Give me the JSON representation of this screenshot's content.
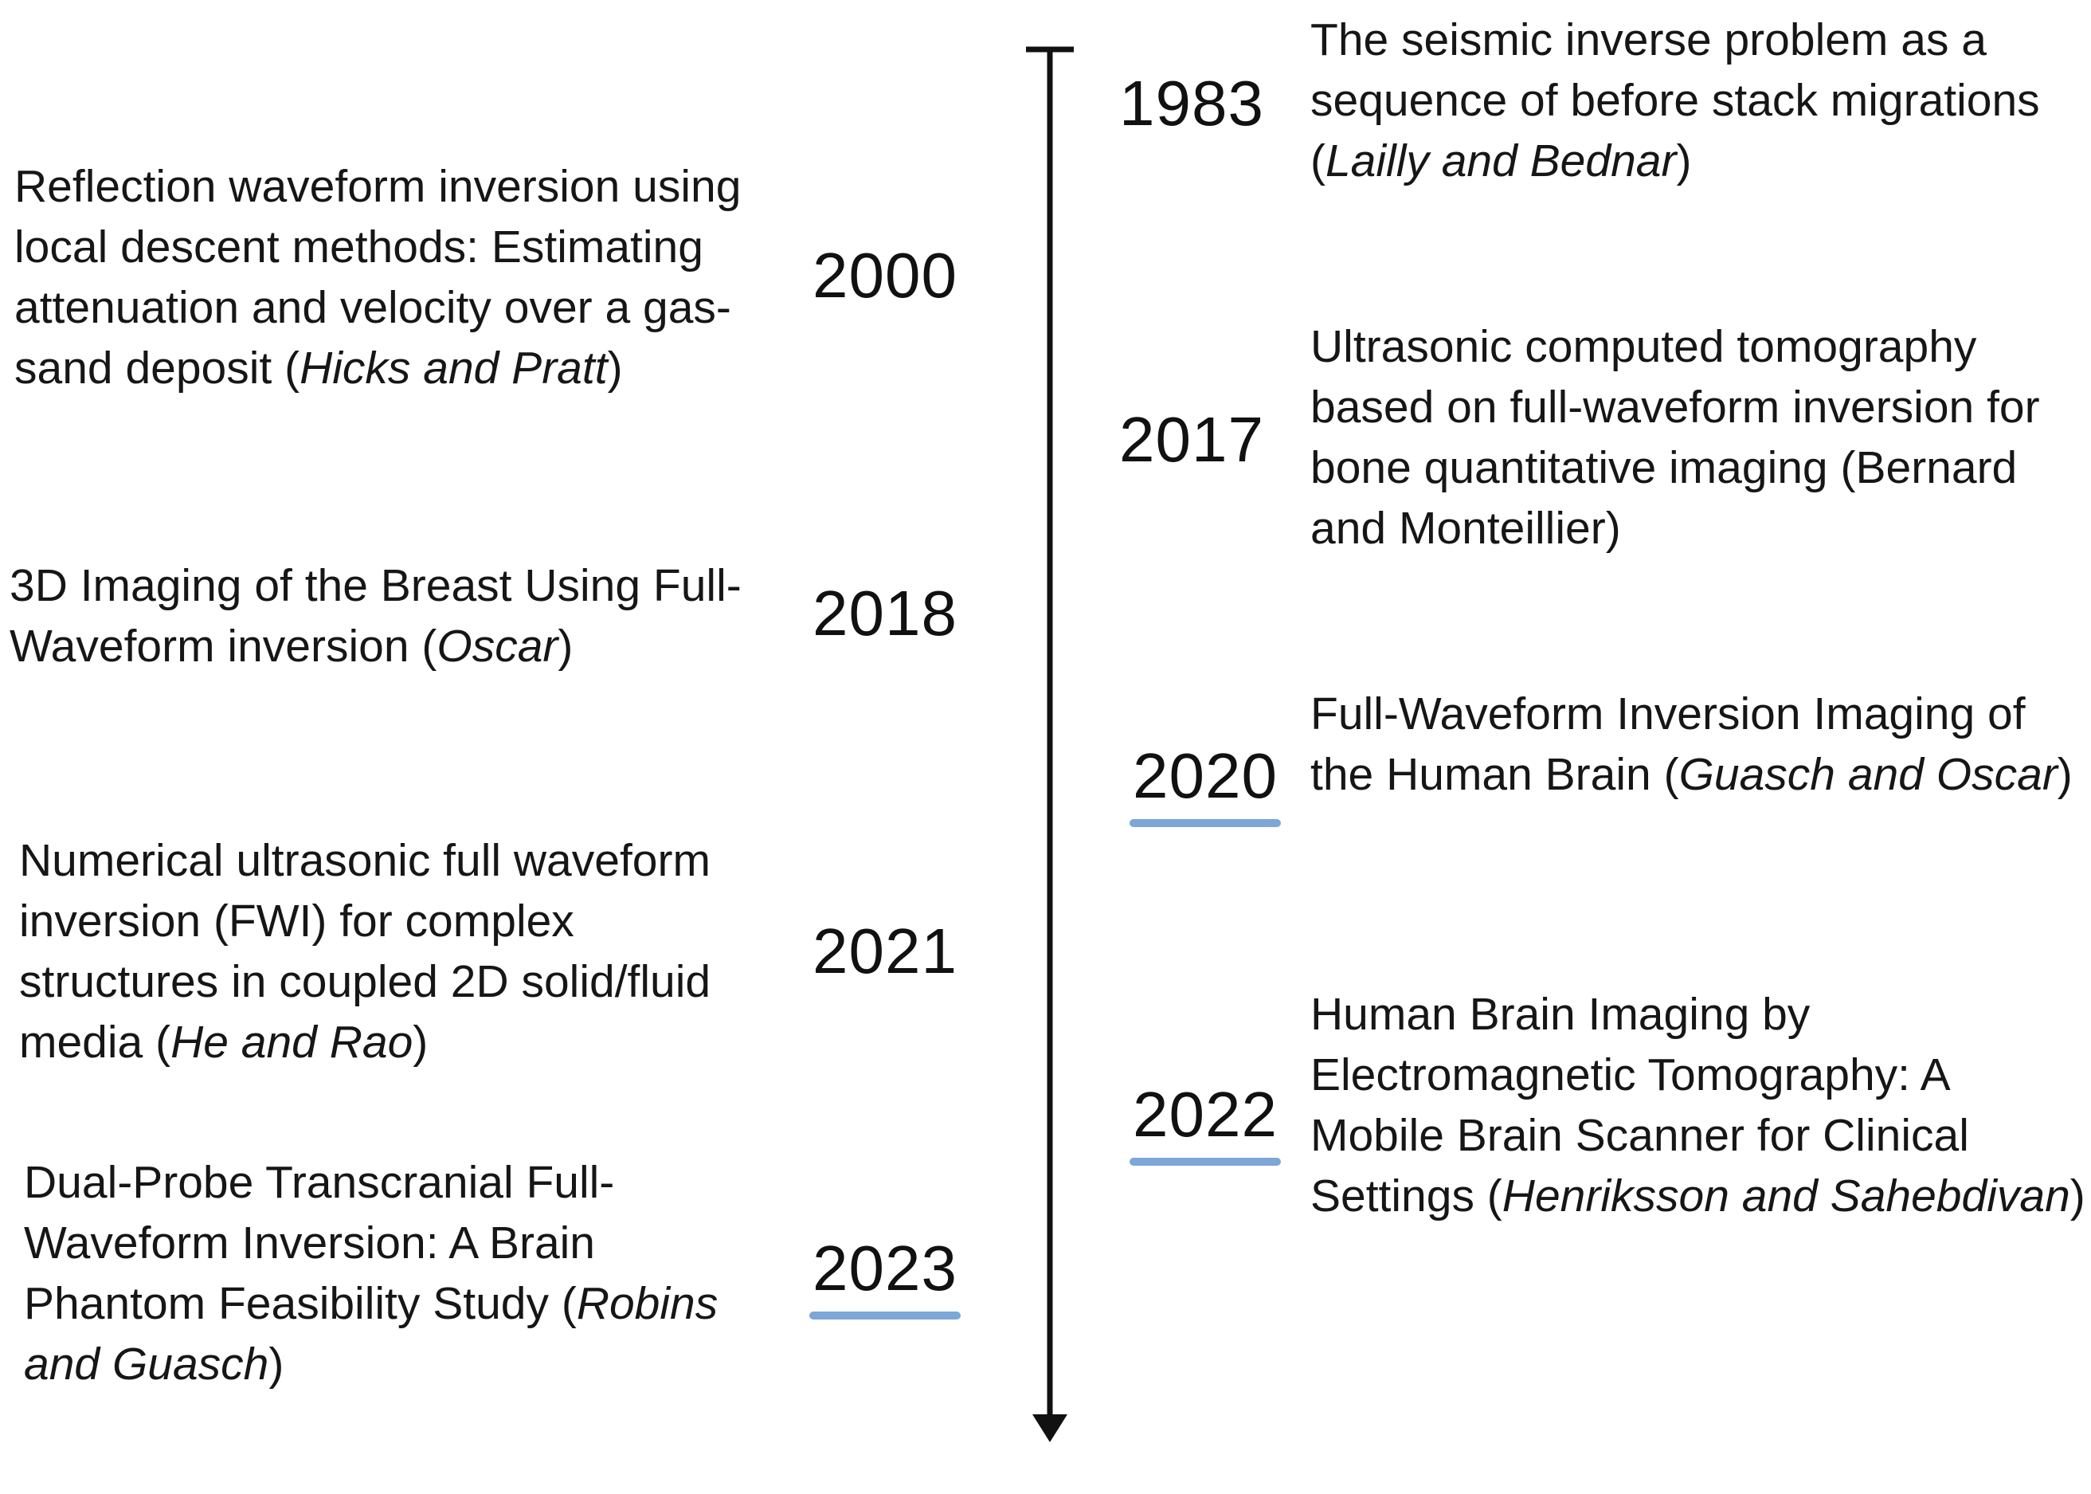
{
  "timeline": {
    "left": [
      {
        "year": "2000",
        "highlight": false,
        "title": "Reflection waveform inversion using local descent methods: Estimating attenuation and velocity over a gas-sand deposit",
        "author": "Hicks and Pratt",
        "author_italic": true
      },
      {
        "year": "2018",
        "highlight": false,
        "title": "3D Imaging of the Breast Using Full-Waveform inversion",
        "author": "Oscar",
        "author_italic": true
      },
      {
        "year": "2021",
        "highlight": false,
        "title": "Numerical ultrasonic full waveform inversion (FWI) for complex structures in coupled 2D solid/fluid media",
        "author": "He and Rao",
        "author_italic": true
      },
      {
        "year": "2023",
        "highlight": true,
        "title": "Dual-Probe Transcranial Full-Waveform Inversion: A Brain Phantom Feasibility Study",
        "author": "Robins and Guasch",
        "author_italic": true
      }
    ],
    "right": [
      {
        "year": "1983",
        "highlight": false,
        "title": "The seismic inverse problem as a sequence of before stack migrations",
        "author": "Lailly and Bednar",
        "author_italic": true
      },
      {
        "year": "2017",
        "highlight": false,
        "title": "Ultrasonic computed tomography based on full-waveform inversion for bone quantitative imaging",
        "author": "Bernard and Monteillier",
        "author_italic": false
      },
      {
        "year": "2020",
        "highlight": true,
        "title": "Full-Waveform Inversion Imaging of the Human Brain",
        "author": "Guasch and Oscar",
        "author_italic": true
      },
      {
        "year": "2022",
        "highlight": true,
        "title": "Human Brain Imaging by Electromagnetic Tomography: A Mobile Brain Scanner for Clinical Settings",
        "author": "Henriksson and Sahebdivan",
        "author_italic": true
      }
    ]
  },
  "colors": {
    "highlight_underline": "#7ea6d6",
    "axis": "#111111"
  }
}
